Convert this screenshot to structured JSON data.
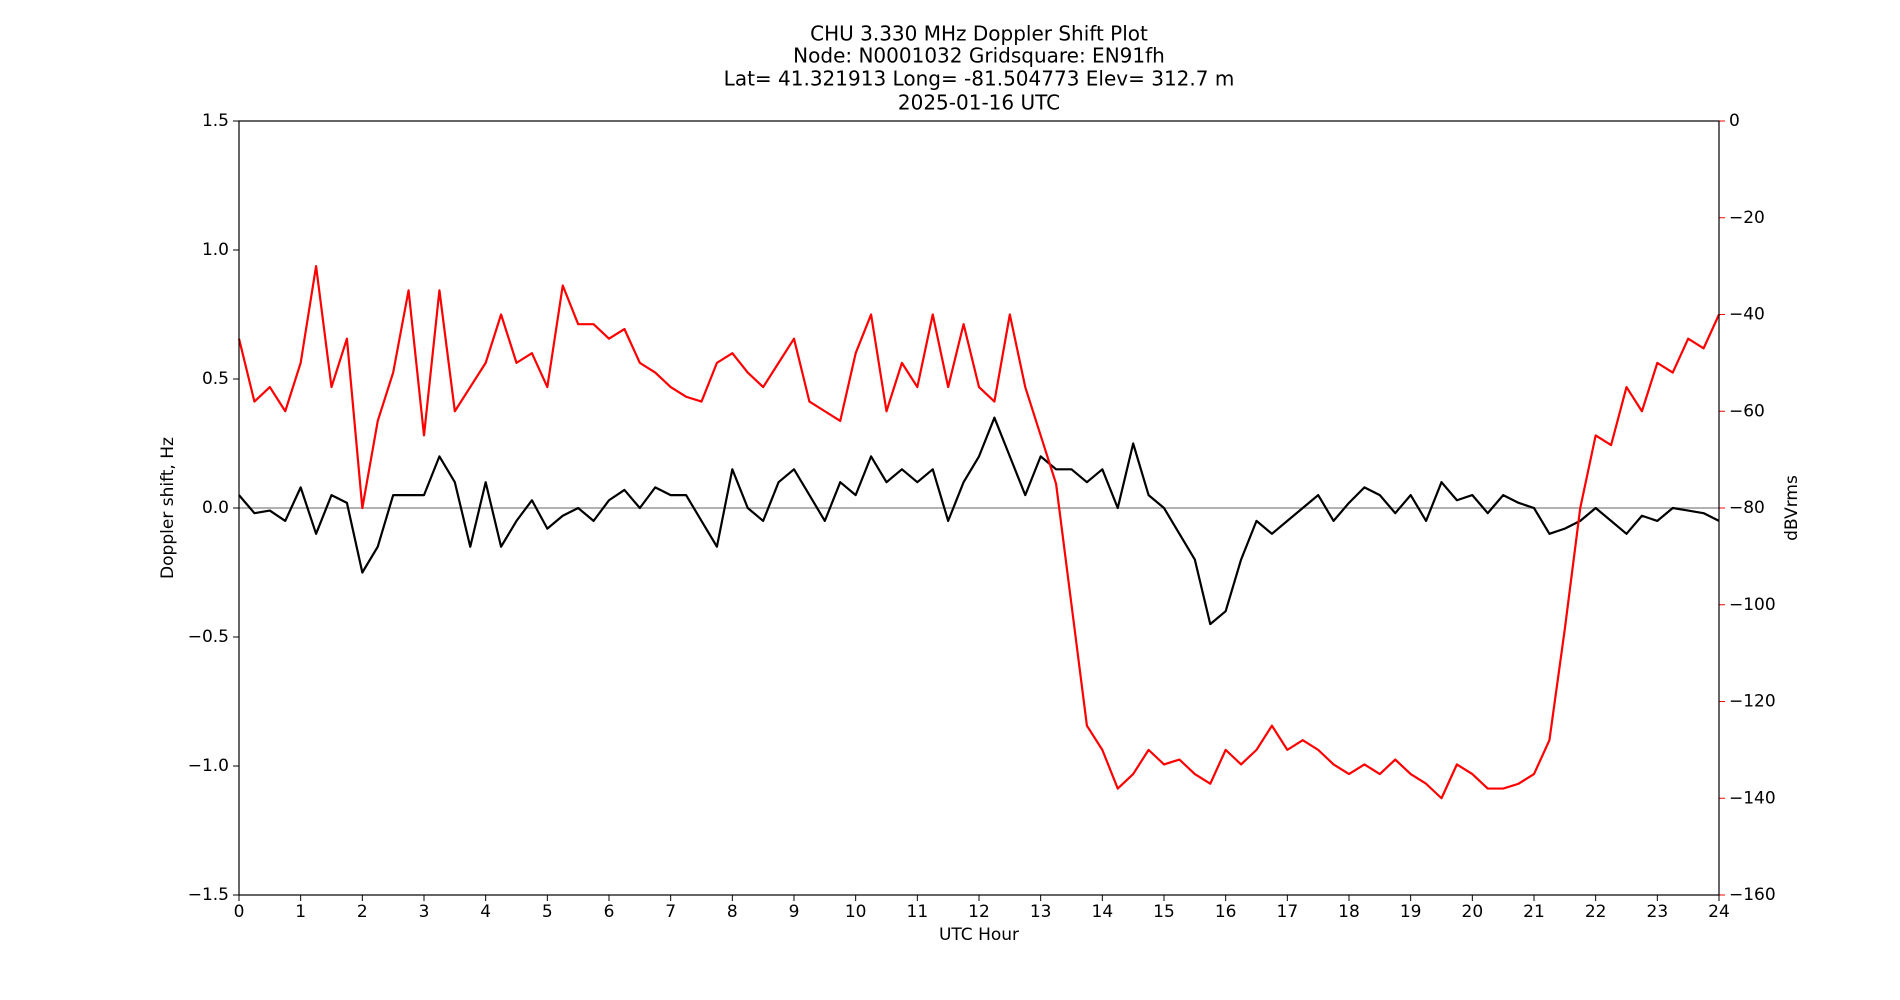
{
  "chart_data": {
    "type": "line",
    "title_lines": [
      "CHU 3.330 MHz Doppler Shift Plot",
      "Node:  N0001032     Gridsquare:  EN91fh",
      "Lat= 41.321913    Long= -81.504773    Elev= 312.7 m",
      "2025-01-16  UTC"
    ],
    "xlabel": "UTC Hour",
    "ylabel": "Doppler shift, Hz",
    "y2label": "dBVrms",
    "y2color": "#ff0000",
    "xlim": [
      0,
      24
    ],
    "xticks": [
      0,
      1,
      2,
      3,
      4,
      5,
      6,
      7,
      8,
      9,
      10,
      11,
      12,
      13,
      14,
      15,
      16,
      17,
      18,
      19,
      20,
      21,
      22,
      23,
      24
    ],
    "ylim": [
      -1.5,
      1.5
    ],
    "yticks": [
      {
        "value": -1.5,
        "label": "−1.5"
      },
      {
        "value": -1.0,
        "label": "−1.0"
      },
      {
        "value": -0.5,
        "label": "−0.5"
      },
      {
        "value": 0,
        "label": "0.0"
      },
      0.5,
      {
        "value": 1.0,
        "label": "1.0"
      },
      1.5
    ],
    "y2lim": [
      -160,
      0
    ],
    "y2ticks": [
      {
        "value": -160,
        "label": "−160"
      },
      {
        "value": -140,
        "label": "−140"
      },
      {
        "value": -120,
        "label": "−120"
      },
      {
        "value": -100,
        "label": "−100"
      },
      {
        "value": -80,
        "label": "−80"
      },
      {
        "value": -60,
        "label": "−60"
      },
      {
        "value": -40,
        "label": "−40"
      },
      {
        "value": -20,
        "label": "−20"
      },
      0
    ],
    "hline": {
      "value": 0,
      "color": "#999999"
    },
    "x": [
      0,
      0.25,
      0.5,
      0.75,
      1,
      1.25,
      1.5,
      1.75,
      2,
      2.25,
      2.5,
      2.75,
      3,
      3.25,
      3.5,
      3.75,
      4,
      4.25,
      4.5,
      4.75,
      5,
      5.25,
      5.5,
      5.75,
      6,
      6.25,
      6.5,
      6.75,
      7,
      7.25,
      7.5,
      7.75,
      8,
      8.25,
      8.5,
      8.75,
      9,
      9.25,
      9.5,
      9.75,
      10,
      10.25,
      10.5,
      10.75,
      11,
      11.25,
      11.5,
      11.75,
      12,
      12.25,
      12.5,
      12.75,
      13,
      13.25,
      13.5,
      13.75,
      14,
      14.25,
      14.5,
      14.75,
      15,
      15.25,
      15.5,
      15.75,
      16,
      16.25,
      16.5,
      16.75,
      17,
      17.25,
      17.5,
      17.75,
      18,
      18.25,
      18.5,
      18.75,
      19,
      19.25,
      19.5,
      19.75,
      20,
      20.25,
      20.5,
      20.75,
      21,
      21.25,
      21.5,
      21.75,
      22,
      22.25,
      22.5,
      22.75,
      23,
      23.25,
      23.5,
      23.75,
      24
    ],
    "series": [
      {
        "color": "#000000",
        "values": [
          0.05,
          -0.02,
          -0.01,
          -0.05,
          0.08,
          -0.1,
          0.05,
          0.02,
          -0.25,
          -0.15,
          0.05,
          0.05,
          0.05,
          0.2,
          0.1,
          -0.15,
          0.1,
          -0.15,
          -0.05,
          0.03,
          -0.08,
          -0.03,
          0.0,
          -0.05,
          0.03,
          0.07,
          0.0,
          0.08,
          0.05,
          0.05,
          -0.05,
          -0.15,
          0.15,
          0.0,
          -0.05,
          0.1,
          0.15,
          0.05,
          -0.05,
          0.1,
          0.05,
          0.2,
          0.1,
          0.15,
          0.1,
          0.15,
          -0.05,
          0.1,
          0.2,
          0.35,
          0.2,
          0.05,
          0.2,
          0.15,
          0.15,
          0.1,
          0.15,
          0.0,
          0.25,
          0.05,
          0.0,
          -0.1,
          -0.2,
          -0.45,
          -0.4,
          -0.2,
          -0.05,
          -0.1,
          -0.05,
          0.0,
          0.05,
          -0.05,
          0.02,
          0.08,
          0.05,
          -0.02,
          0.05,
          -0.05,
          0.1,
          0.03,
          0.05,
          -0.02,
          0.05,
          0.02,
          0.0,
          -0.1,
          -0.08,
          -0.05,
          0.0,
          -0.05,
          -0.1,
          -0.03,
          -0.05,
          0.0,
          -0.01,
          -0.02,
          -0.05
        ]
      },
      {
        "color": "#ff0000",
        "axis": "y2",
        "values": [
          -45,
          -58,
          -55,
          -60,
          -50,
          -30,
          -55,
          -45,
          -80,
          -62,
          -52,
          -35,
          -65,
          -35,
          -60,
          -55,
          -50,
          -40,
          -50,
          -48,
          -55,
          -34,
          -42,
          -42,
          -45,
          -43,
          -50,
          -52,
          -55,
          -57,
          -58,
          -50,
          -48,
          -52,
          -55,
          -50,
          -45,
          -58,
          -60,
          -62,
          -48,
          -40,
          -60,
          -50,
          -55,
          -40,
          -55,
          -42,
          -55,
          -58,
          -40,
          -55,
          -65,
          -75,
          -100,
          -125,
          -130,
          -138,
          -135,
          -130,
          -133,
          -132,
          -135,
          -137,
          -130,
          -133,
          -130,
          -125,
          -130,
          -128,
          -130,
          -133,
          -135,
          -133,
          -135,
          -132,
          -135,
          -137,
          -140,
          -133,
          -135,
          -138,
          -138,
          -137,
          -135,
          -128,
          -105,
          -80,
          -65,
          -67,
          -55,
          -60,
          -50,
          -52,
          -45,
          -47,
          -40
        ]
      }
    ]
  }
}
